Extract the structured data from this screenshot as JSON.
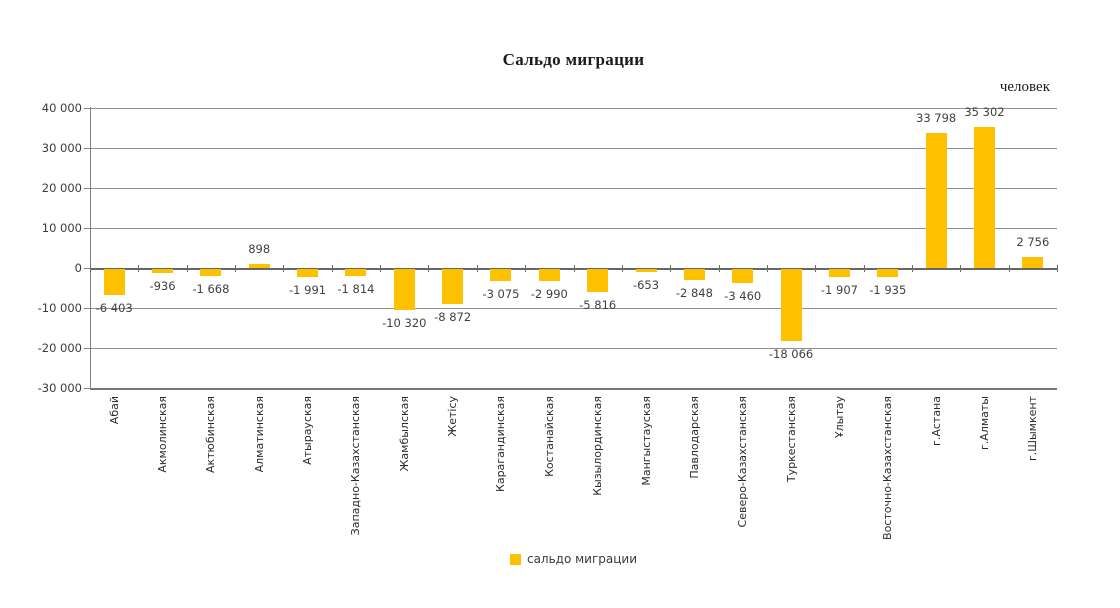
{
  "chart": {
    "title": "Сальдо миграции",
    "unit": "человек",
    "legend_label": "сальдо миграции"
  },
  "colors": {
    "bar": "#FFC000",
    "gridline": "#8f8f8f",
    "axis": "#808080",
    "text": "#404040"
  },
  "chart_data": {
    "type": "bar",
    "title": "Сальдо миграции",
    "xlabel": "",
    "ylabel": "человек",
    "ylim": [
      -30000,
      40000
    ],
    "grid": true,
    "legend": [
      "сальдо миграции"
    ],
    "legend_position": "bottom",
    "bar_color": "#FFC000",
    "categories": [
      "Абай",
      "Акмолинская",
      "Актюбинская",
      "Алматинская",
      "Атырауская",
      "Западно-Казахстанская",
      "Жамбылская",
      "Жетісу",
      "Карагандинская",
      "Костанайская",
      "Кызылординская",
      "Мангыстауская",
      "Павлодарская",
      "Северо-Казахстанская",
      "Туркестанская",
      "Ұлытау",
      "Восточно-Казахстанская",
      "г.Астана",
      "г.Алматы",
      "г.Шымкент"
    ],
    "values": [
      -6403,
      -936,
      -1668,
      898,
      -1991,
      -1814,
      -10320,
      -8872,
      -3075,
      -2990,
      -5816,
      -653,
      -2848,
      -3460,
      -18066,
      -1907,
      -1935,
      33798,
      35302,
      2756
    ],
    "value_labels": [
      "-6 403",
      "-936",
      "-1 668",
      "898",
      "-1 991",
      "-1 814",
      "-10 320",
      "-8 872",
      "-3 075",
      "-2 990",
      "-5 816",
      "-653",
      "-2 848",
      "-3 460",
      "-18 066",
      "-1 907",
      "-1 935",
      "33 798",
      "35 302",
      "2 756"
    ],
    "y_ticks": [
      {
        "value": 40000,
        "label": "40 000"
      },
      {
        "value": 30000,
        "label": "30 000"
      },
      {
        "value": 20000,
        "label": "20 000"
      },
      {
        "value": 10000,
        "label": "10 000"
      },
      {
        "value": 0,
        "label": "0"
      },
      {
        "value": -10000,
        "label": "-10 000"
      },
      {
        "value": -20000,
        "label": "-20 000"
      },
      {
        "value": -30000,
        "label": "-30 000"
      }
    ]
  }
}
